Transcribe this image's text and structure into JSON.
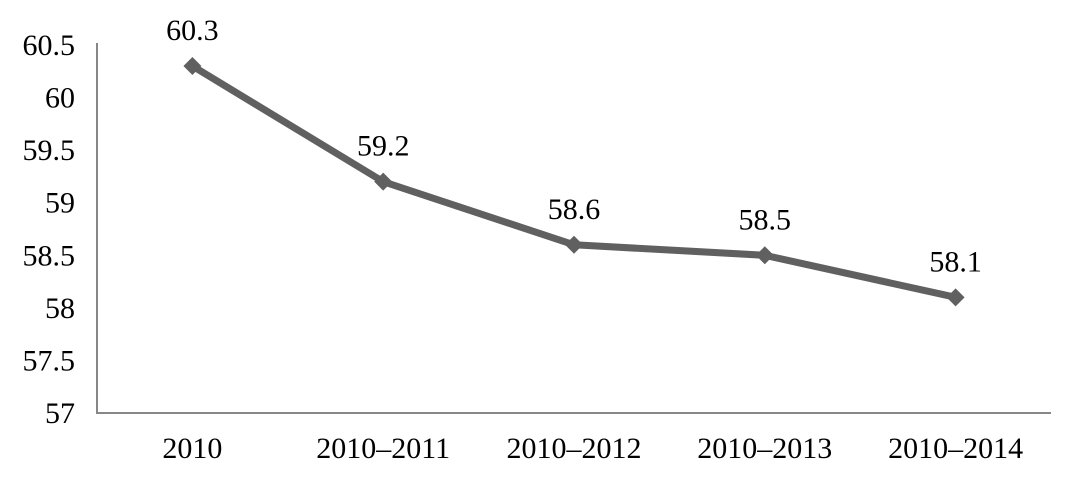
{
  "chart_data": {
    "type": "line",
    "title": "",
    "xlabel": "",
    "ylabel": "",
    "categories": [
      "2010",
      "2010–2011",
      "2010–2012",
      "2010–2013",
      "2010–2014"
    ],
    "values": [
      60.3,
      59.2,
      58.6,
      58.5,
      58.1
    ],
    "data_labels": [
      "60.3",
      "59.2",
      "58.6",
      "58.5",
      "58.1"
    ],
    "ylim": [
      57,
      60.5
    ],
    "ytick_step": 0.5,
    "ytick_labels": [
      "60.5",
      "60",
      "59.5",
      "59",
      "58.5",
      "58",
      "57.5",
      "57"
    ],
    "grid": false,
    "legend": false,
    "marker": "diamond",
    "colors": {
      "line": "#606060",
      "marker": "#606060",
      "axis": "#878787",
      "text": "#000000"
    }
  }
}
